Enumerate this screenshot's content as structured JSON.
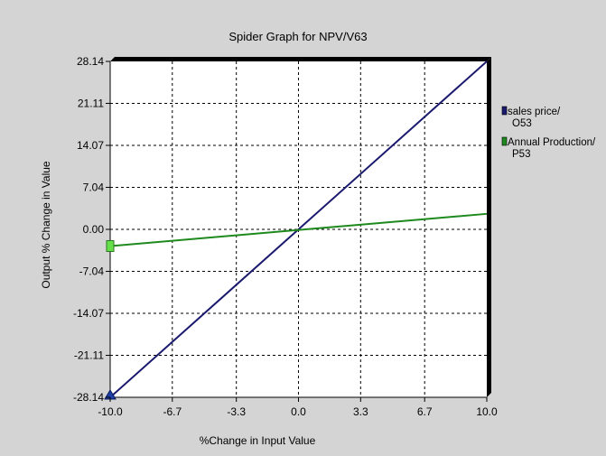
{
  "chart_data": {
    "type": "line",
    "title": "Spider Graph for NPV/V63",
    "xlabel": "%Change in Input Value",
    "ylabel": "Output % Change in Value",
    "xlim": [
      -10,
      10
    ],
    "ylim": [
      -28.14,
      28.14
    ],
    "x_ticks": [
      "-10.0",
      "-6.7",
      "-3.3",
      "0.0",
      "3.3",
      "6.7",
      "10.0"
    ],
    "y_ticks": [
      "28.14",
      "21.11",
      "14.07",
      "7.04",
      "0.00",
      "-7.04",
      "-14.07",
      "-21.11",
      "-28.14"
    ],
    "grid": true,
    "legend_position": "right",
    "series": [
      {
        "name": "sales price/ O53",
        "name_lines": [
          "sales price/",
          "O53"
        ],
        "color": "#1a1a6e",
        "marker": "triangle",
        "x": [
          -10,
          10
        ],
        "y": [
          -28.14,
          28.14
        ]
      },
      {
        "name": "Annual Production/ P53",
        "name_lines": [
          "Annual Production/",
          "P53"
        ],
        "color": "#1e8a1e",
        "marker": "square",
        "x": [
          -10,
          10
        ],
        "y": [
          -2.8,
          2.6
        ]
      }
    ]
  }
}
